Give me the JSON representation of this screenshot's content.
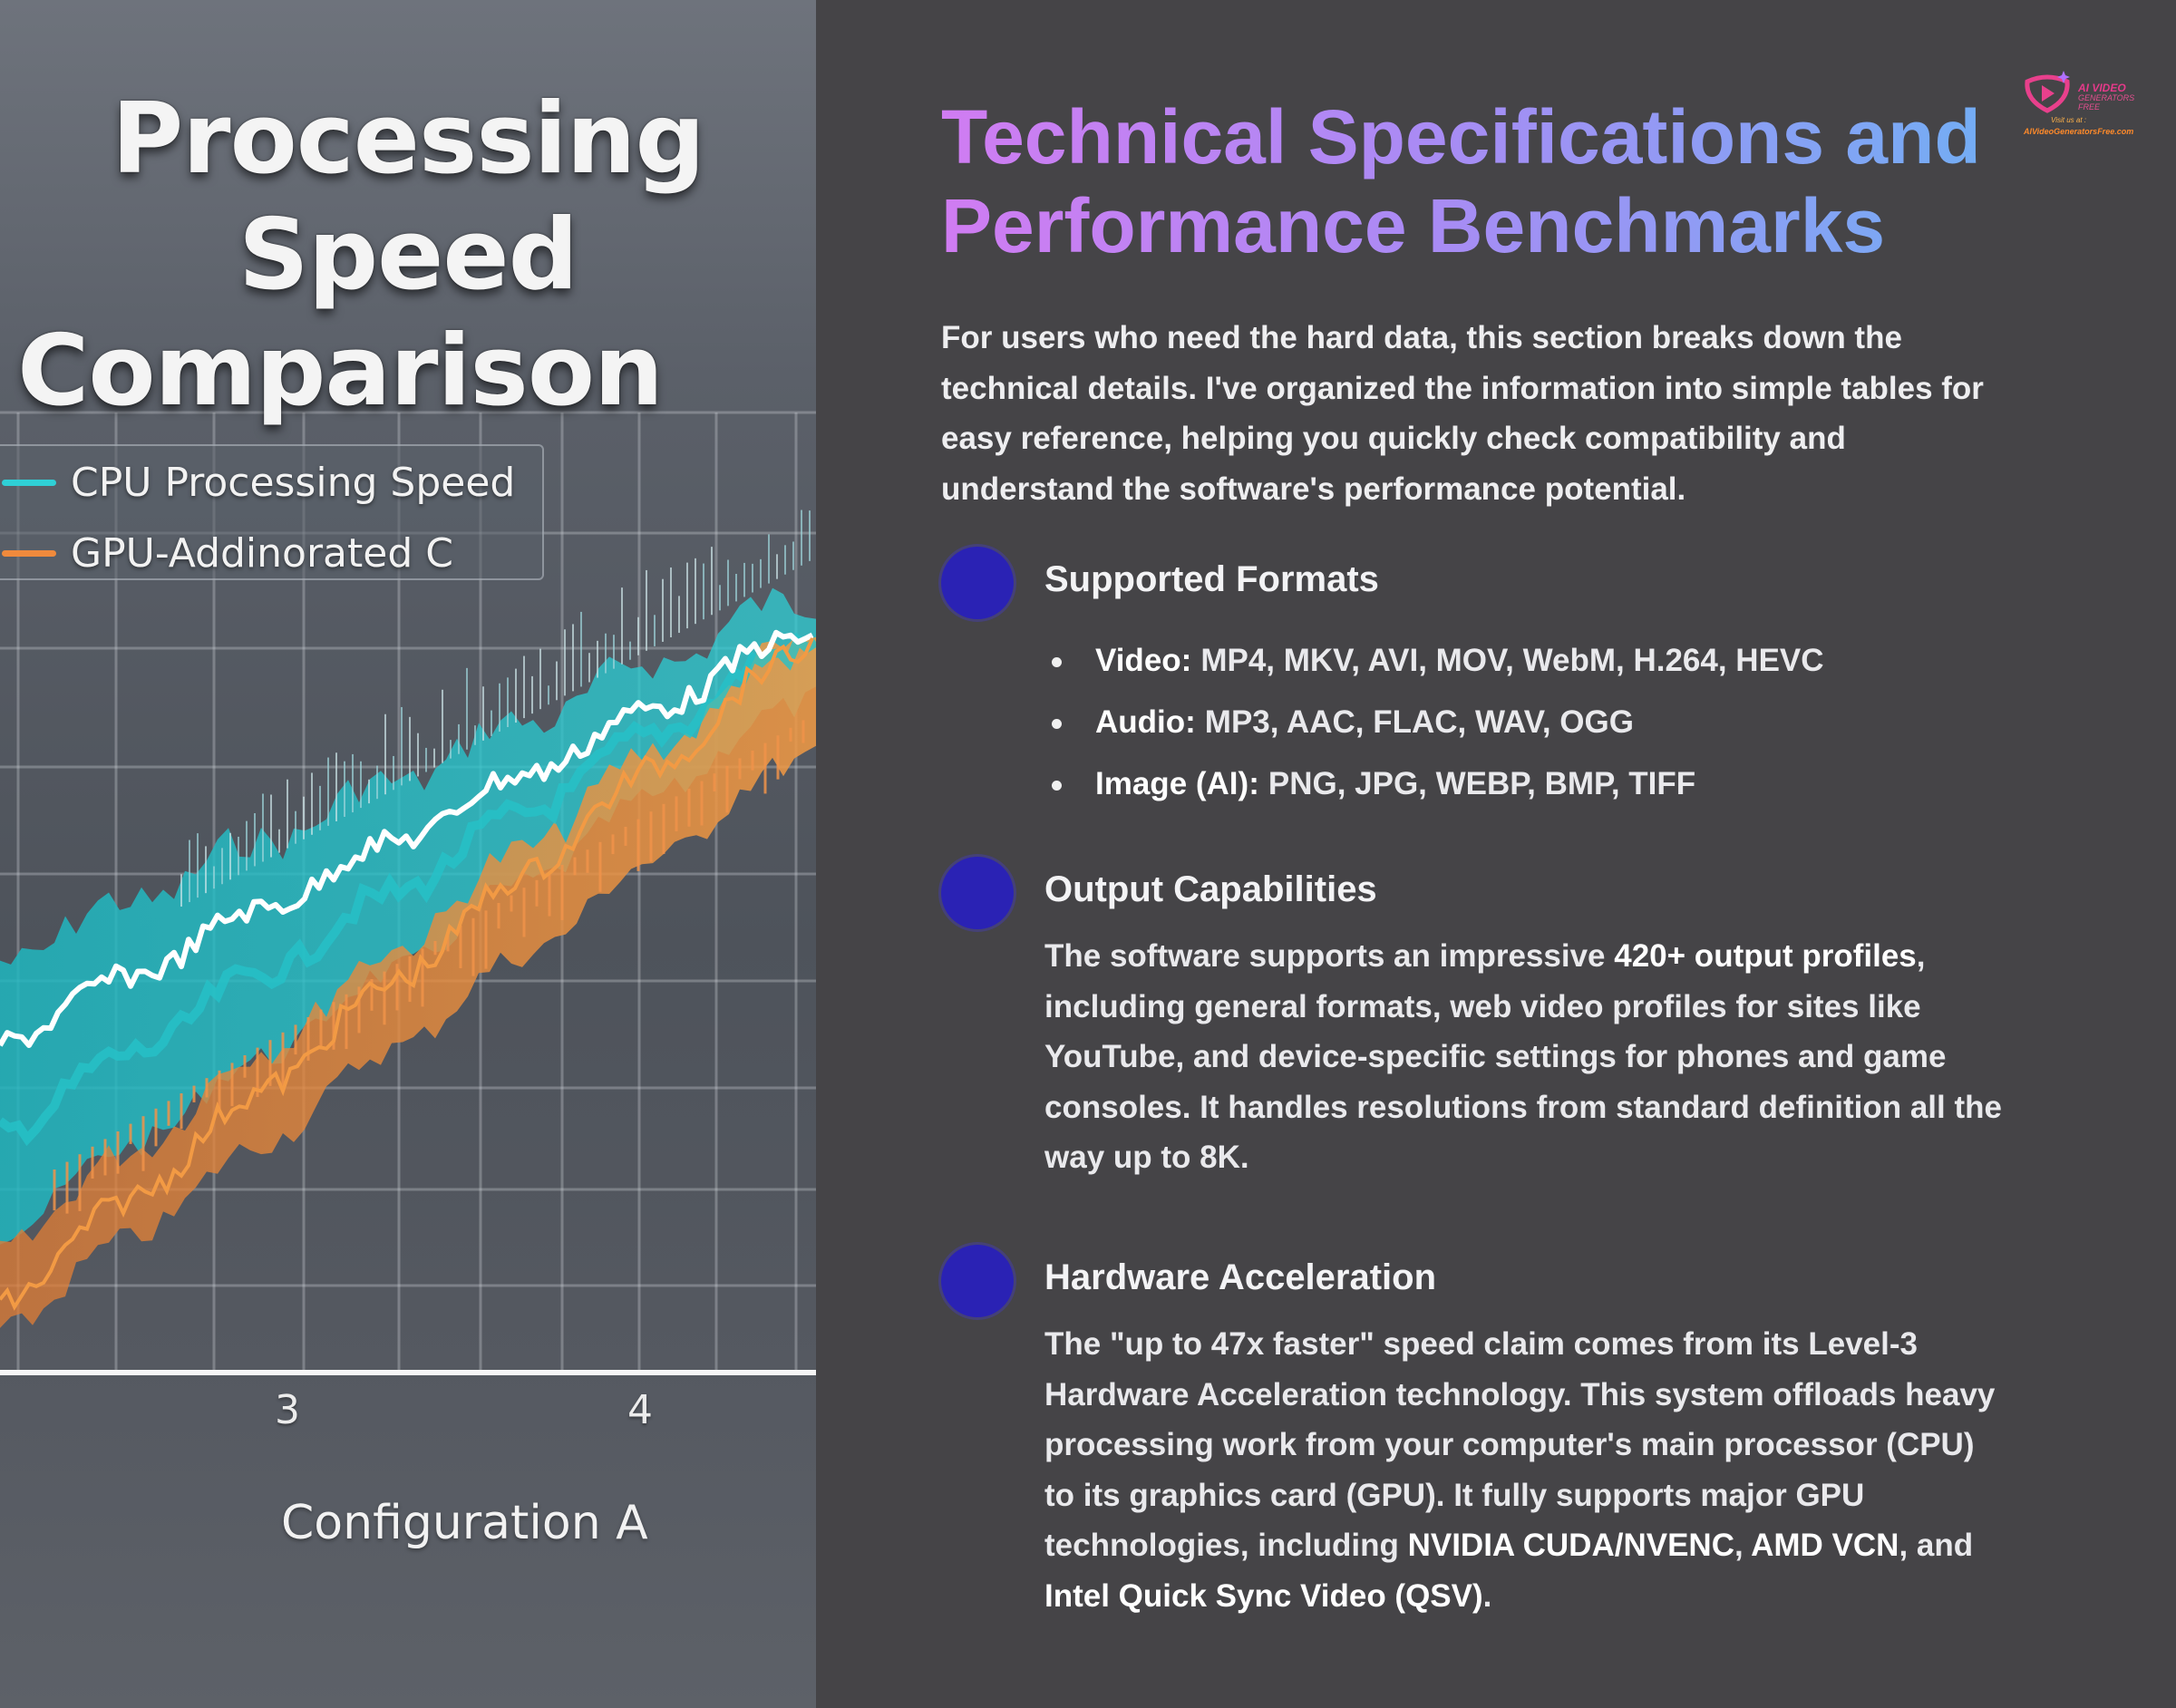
{
  "image_panel": {
    "title_line1": "Processing Speed",
    "title_line2": "Comparison",
    "legend": [
      {
        "label": "CPU Processing Speed",
        "color": "#2fd0d6"
      },
      {
        "label": "GPU-Addinorated C",
        "color": "#f08a3c"
      }
    ],
    "x_ticks": [
      "3",
      "4"
    ],
    "x_axis_label": "Configuration A"
  },
  "heading": {
    "line1": "Technical Specifications and",
    "line2": "Performance Benchmarks"
  },
  "intro": "For users who need the hard data, this section breaks down the technical details. I've organized the information into simple tables for easy reference, helping you quickly check compatibility and understand the software's performance potential.",
  "sections": {
    "formats": {
      "title": "Supported Formats",
      "items": [
        {
          "key": "Video:",
          "value": "MP4, MKV, AVI, MOV, WebM, H.264, HEVC"
        },
        {
          "key": "Audio:",
          "value": "MP3, AAC, FLAC, WAV, OGG"
        },
        {
          "key": "Image (AI):",
          "value": "PNG, JPG, WEBP, BMP, TIFF"
        }
      ]
    },
    "output": {
      "title": "Output Capabilities",
      "body_pre": "The software supports an impressive ",
      "body_strong": "420+ output profiles",
      "body_post": ", including general formats, web video profiles for sites like YouTube, and device-specific settings for phones and game consoles. It handles resolutions from standard definition all the way up to 8K."
    },
    "hardware": {
      "title": "Hardware Acceleration",
      "body_pre": "The \"up to 47x faster\" speed claim comes from its Level-3 Hardware Acceleration technology. This system offloads heavy processing work from your computer's main processor (CPU) to its graphics card (GPU). It fully supports major GPU technologies, including ",
      "strong1": "NVIDIA CUDA/NVENC",
      "sep1": ", ",
      "strong2": "AMD VCN",
      "sep2": ", and ",
      "strong3": "Intel Quick Sync Video (QSV)",
      "body_end": "."
    }
  },
  "logo": {
    "line1": "AI VIDEO",
    "line2": "GENERATORS FREE",
    "line3": "Visit us at :",
    "line4": "AIVideoGeneratorsFree.com"
  },
  "colors": {
    "background": "#454447",
    "bullet": "#2a22b4",
    "heading_gradient_start": "#d07cf2",
    "heading_gradient_end": "#6fb0f4"
  }
}
